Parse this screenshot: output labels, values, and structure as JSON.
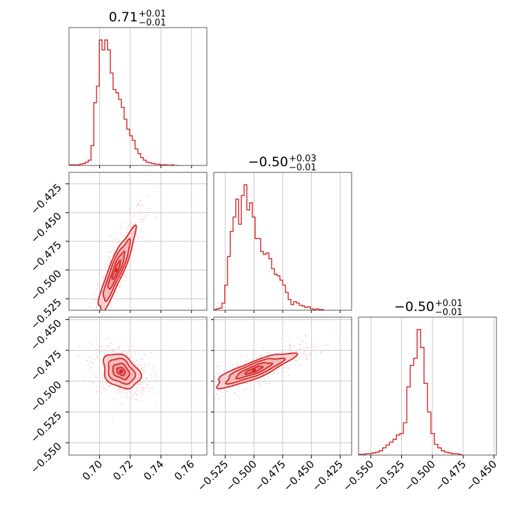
{
  "chart_data": {
    "type": "corner",
    "color": "#d62728",
    "fill_color": "#f2b4b5",
    "scatter_color": "#f5c8c9",
    "grid": true,
    "parameters": [
      {
        "title": {
          "value": "0.71",
          "plus": "+0.01",
          "minus": "−0.01"
        },
        "range": [
          0.68,
          0.77
        ],
        "ticks": [
          0.7,
          0.72,
          0.74,
          0.76
        ],
        "tick_labels": [
          "0.70",
          "0.72",
          "0.74",
          "0.76"
        ],
        "hist": {
          "bin_edges_start": 0.68,
          "bin_width": 0.0018,
          "counts": [
            1,
            1,
            1,
            1,
            2,
            3,
            5,
            8,
            30,
            95,
            120,
            190,
            175,
            190,
            175,
            140,
            115,
            110,
            100,
            88,
            70,
            55,
            45,
            38,
            25,
            18,
            12,
            8,
            5,
            4,
            3,
            2,
            2,
            1,
            1,
            1,
            0,
            1,
            0,
            0
          ]
        }
      },
      {
        "title": {
          "value": "−0.50",
          "plus": "+0.03",
          "minus": "−0.01"
        },
        "range": [
          -0.535,
          -0.415
        ],
        "ticks": [
          -0.525,
          -0.5,
          -0.475,
          -0.45,
          -0.425
        ],
        "tick_labels": [
          "−0.525",
          "−0.500",
          "−0.475",
          "−0.450",
          "−0.425"
        ],
        "hist": {
          "bin_edges_start": -0.535,
          "bin_width": 0.0024,
          "counts": [
            1,
            2,
            3,
            10,
            35,
            75,
            110,
            130,
            155,
            120,
            160,
            175,
            140,
            150,
            130,
            100,
            100,
            82,
            78,
            80,
            72,
            58,
            50,
            48,
            42,
            35,
            25,
            15,
            8,
            12,
            10,
            7,
            6,
            4,
            5,
            2,
            1,
            2,
            1,
            1
          ]
        }
      },
      {
        "title": {
          "value": "−0.50",
          "plus": "+0.01",
          "minus": "−0.01"
        },
        "range": [
          -0.56,
          -0.448
        ],
        "ticks": [
          -0.55,
          -0.525,
          -0.5,
          -0.475,
          -0.45
        ],
        "tick_labels": [
          "−0.550",
          "−0.525",
          "−0.500",
          "−0.475",
          "−0.450"
        ],
        "hist": {
          "bin_edges_start": -0.56,
          "bin_width": 0.0028,
          "counts": [
            1,
            1,
            2,
            2,
            3,
            4,
            6,
            10,
            14,
            18,
            22,
            28,
            30,
            45,
            95,
            125,
            135,
            175,
            150,
            100,
            60,
            30,
            15,
            10,
            6,
            4,
            3,
            2,
            2,
            1
          ]
        }
      }
    ],
    "pairs": [
      {
        "x": 0,
        "y": 1,
        "center": [
          0.711,
          -0.5
        ],
        "sigma": [
          0.006,
          0.018
        ],
        "rho": 0.9
      },
      {
        "x": 0,
        "y": 2,
        "center": [
          0.714,
          -0.492
        ],
        "sigma": [
          0.006,
          0.007
        ],
        "rho": -0.3
      },
      {
        "x": 1,
        "y": 2,
        "center": [
          -0.5,
          -0.491
        ],
        "sigma": [
          0.017,
          0.007
        ],
        "rho": 0.85
      }
    ]
  }
}
